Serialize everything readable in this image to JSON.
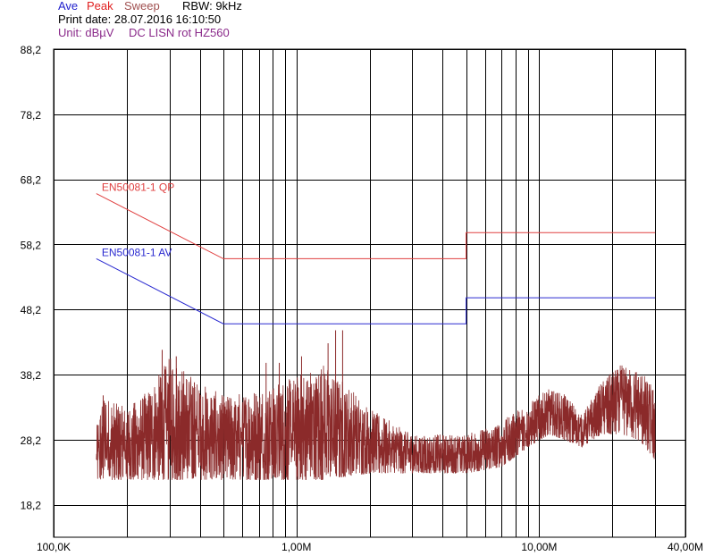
{
  "header": {
    "ave": "Ave",
    "peak": "Peak",
    "sweep": "Sweep",
    "rbw": "RBW: 9kHz",
    "print_date": "Print date: 28.07.2016 16:10:50",
    "unit": "Unit: dBµV",
    "setup": "DC LISN rot HZ560"
  },
  "colors": {
    "ave": "#1f1fcc",
    "peak": "#e02020",
    "sweep": "#a05050",
    "unit": "#8a2a8a",
    "limit_qp": "#e04040",
    "limit_av": "#2a2ad0",
    "trace": "#8b2a2a",
    "grid": "#000000"
  },
  "chart_data": {
    "type": "line",
    "xscale": "log",
    "xlim": [
      100000,
      40000000
    ],
    "ylim": [
      13.2,
      88.2
    ],
    "ylabel_unit": "dBµV",
    "y_ticks": [
      "88,2",
      "78,2",
      "68,2",
      "58,2",
      "48,2",
      "38,2",
      "28,2",
      "18,2"
    ],
    "y_tick_values": [
      88.2,
      78.2,
      68.2,
      58.2,
      48.2,
      38.2,
      28.2,
      18.2
    ],
    "x_ticks": [
      {
        "label": "100,0K",
        "value": 100000
      },
      {
        "label": "1,00M",
        "value": 1000000
      },
      {
        "label": "10,00M",
        "value": 10000000
      },
      {
        "label": "40,00M",
        "value": 40000000
      }
    ],
    "grid": true,
    "series": [
      {
        "name": "EN50081-1 QP",
        "x": [
          150000,
          500000,
          500000,
          5000000,
          5000000,
          30000000
        ],
        "y": [
          66,
          56,
          56,
          56,
          60,
          60
        ]
      },
      {
        "name": "EN50081-1 AV",
        "x": [
          150000,
          500000,
          500000,
          5000000,
          5000000,
          30000000
        ],
        "y": [
          56,
          46,
          46,
          46,
          50,
          50
        ]
      },
      {
        "name": "Sweep",
        "envelope_freq": [
          150000,
          160000,
          200000,
          250000,
          300000,
          400000,
          500000,
          700000,
          1000000,
          1300000,
          1600000,
          2000000,
          3000000,
          5000000,
          7000000,
          9000000,
          11000000,
          13000000,
          15000000,
          18000000,
          22000000,
          26000000,
          30000000
        ],
        "envelope_min": [
          22,
          22,
          22,
          22,
          22,
          22,
          22,
          22,
          22,
          22,
          22.5,
          23,
          23,
          23,
          24,
          27,
          29,
          28,
          27,
          29,
          29,
          28,
          25
        ],
        "envelope_max": [
          30,
          35,
          33,
          36,
          41,
          37,
          35,
          36,
          38,
          40,
          37,
          33,
          29,
          29,
          31,
          34,
          36,
          35,
          32,
          37,
          40,
          39,
          36
        ],
        "spikes": [
          {
            "f": 160000,
            "y": 35
          },
          {
            "f": 280000,
            "y": 42
          },
          {
            "f": 320000,
            "y": 41
          },
          {
            "f": 380000,
            "y": 37
          },
          {
            "f": 1450000,
            "y": 45
          },
          {
            "f": 1550000,
            "y": 45
          },
          {
            "f": 1350000,
            "y": 43
          },
          {
            "f": 1050000,
            "y": 41
          },
          {
            "f": 850000,
            "y": 40
          },
          {
            "f": 750000,
            "y": 40
          }
        ]
      }
    ]
  }
}
